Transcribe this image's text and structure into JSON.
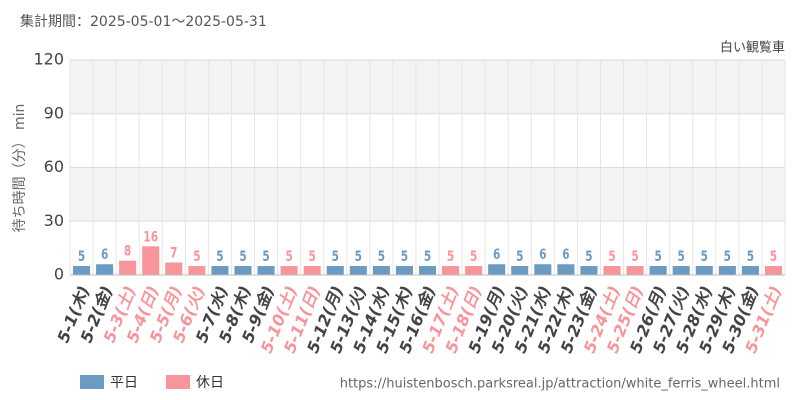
{
  "chart_data": {
    "type": "bar",
    "title": "集計期間：2025-05-01～2025-05-31",
    "subtitle": "白い観覧車",
    "y_label": "待ち時間（分） min",
    "source": "https://huistenbosch.parksreal.jp/attraction/white_ferris_wheel.html",
    "categories": [
      "5-1(木)",
      "5-2(金)",
      "5-3(土)",
      "5-4(日)",
      "5-5(月)",
      "5-6(火)",
      "5-7(水)",
      "5-8(木)",
      "5-9(金)",
      "5-10(土)",
      "5-11(日)",
      "5-12(月)",
      "5-13(火)",
      "5-14(水)",
      "5-15(木)",
      "5-16(金)",
      "5-17(土)",
      "5-18(日)",
      "5-19(月)",
      "5-20(火)",
      "5-21(水)",
      "5-22(木)",
      "5-23(金)",
      "5-24(土)",
      "5-25(日)",
      "5-26(月)",
      "5-27(火)",
      "5-28(水)",
      "5-29(木)",
      "5-30(金)",
      "5-31(土)"
    ],
    "series": [
      {
        "name": "平日",
        "color": "#6b9bc3",
        "values": [
          5,
          6,
          null,
          null,
          null,
          null,
          5,
          5,
          5,
          null,
          null,
          5,
          5,
          5,
          5,
          5,
          null,
          null,
          6,
          5,
          6,
          6,
          5,
          null,
          null,
          5,
          5,
          5,
          5,
          5,
          null
        ]
      },
      {
        "name": "休日",
        "color": "#f7959a",
        "values": [
          null,
          null,
          8,
          16,
          7,
          5,
          null,
          null,
          null,
          5,
          5,
          null,
          null,
          null,
          null,
          null,
          5,
          5,
          null,
          null,
          null,
          null,
          null,
          5,
          5,
          null,
          null,
          null,
          null,
          null,
          5
        ]
      }
    ],
    "ylim": [
      0,
      120
    ],
    "yticks": [
      0,
      30,
      60,
      90,
      120
    ],
    "grid": true,
    "legend": "bottom-left"
  }
}
